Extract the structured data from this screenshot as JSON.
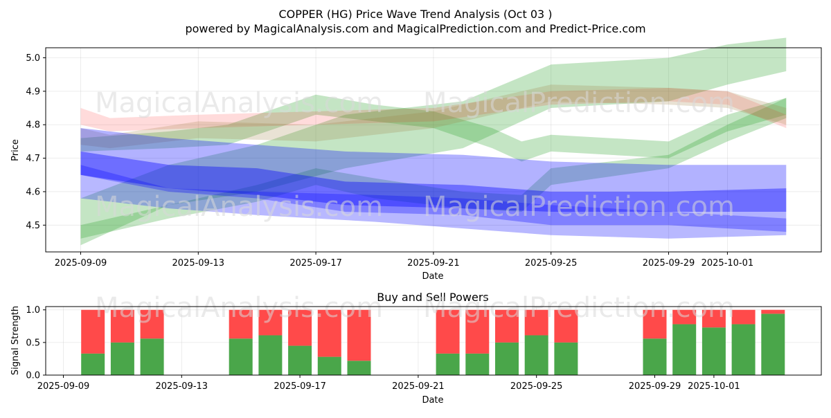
{
  "title_line1": "COPPER (HG) Price Wave Trend Analysis (Oct 03 )",
  "title_line2": "powered by MagicalAnalysis.com and MagicalPrediction.com and Predict-Price.com",
  "watermarks": [
    "MagicalAnalysis.com",
    "MagicalPrediction.com"
  ],
  "chart_data": [
    {
      "type": "area",
      "title": "COPPER (HG) Price Wave Trend Analysis (Oct 03 )",
      "xlabel": "Date",
      "ylabel": "Price",
      "xlim": [
        "2025-09-08",
        "2025-10-04"
      ],
      "ylim": [
        4.42,
        5.03
      ],
      "yticks": [
        4.5,
        4.6,
        4.7,
        4.8,
        4.9,
        5.0
      ],
      "xticks": [
        "2025-09-09",
        "2025-09-13",
        "2025-09-17",
        "2025-09-21",
        "2025-09-25",
        "2025-09-29",
        "2025-10-01"
      ],
      "grid": true,
      "series": [
        {
          "name": "green band 1",
          "color": "#2ca02c",
          "x": [
            "2025-09-09",
            "2025-09-12",
            "2025-09-15",
            "2025-09-18",
            "2025-09-22",
            "2025-09-25",
            "2025-09-29",
            "2025-10-01",
            "2025-10-03"
          ],
          "upper": [
            4.58,
            4.68,
            4.74,
            4.83,
            4.87,
            4.98,
            5.0,
            5.04,
            5.06
          ],
          "lower": [
            4.44,
            4.56,
            4.6,
            4.67,
            4.73,
            4.85,
            4.87,
            4.92,
            4.96
          ]
        },
        {
          "name": "green band 2",
          "color": "#2ca02c",
          "x": [
            "2025-09-09",
            "2025-09-12",
            "2025-09-15",
            "2025-09-17",
            "2025-09-19",
            "2025-09-22",
            "2025-09-24",
            "2025-09-25",
            "2025-09-29",
            "2025-10-01",
            "2025-10-03"
          ],
          "upper": [
            4.5,
            4.56,
            4.62,
            4.67,
            4.64,
            4.6,
            4.59,
            4.67,
            4.71,
            4.8,
            4.88
          ],
          "lower": [
            4.46,
            4.52,
            4.57,
            4.62,
            4.58,
            4.55,
            4.54,
            4.62,
            4.67,
            4.75,
            4.82
          ]
        },
        {
          "name": "green band 3",
          "color": "#2ca02c",
          "x": [
            "2025-09-09",
            "2025-09-12",
            "2025-09-14",
            "2025-09-16",
            "2025-09-17",
            "2025-09-19",
            "2025-09-21",
            "2025-09-23",
            "2025-09-24",
            "2025-09-25",
            "2025-09-29",
            "2025-10-01",
            "2025-10-03"
          ],
          "upper": [
            4.76,
            4.78,
            4.8,
            4.86,
            4.89,
            4.86,
            4.84,
            4.79,
            4.75,
            4.77,
            4.75,
            4.83,
            4.88
          ],
          "lower": [
            4.72,
            4.73,
            4.74,
            4.8,
            4.83,
            4.81,
            4.79,
            4.73,
            4.69,
            4.72,
            4.7,
            4.78,
            4.83
          ]
        },
        {
          "name": "red band",
          "color": "#ff0000",
          "x": [
            "2025-09-09",
            "2025-09-10",
            "2025-09-13",
            "2025-09-17",
            "2025-09-21",
            "2025-09-25",
            "2025-09-29",
            "2025-10-01",
            "2025-10-03"
          ],
          "upper": [
            4.85,
            4.82,
            4.83,
            4.84,
            4.85,
            4.9,
            4.91,
            4.9,
            4.83
          ],
          "lower": [
            4.8,
            4.78,
            4.79,
            4.8,
            4.81,
            4.86,
            4.87,
            4.86,
            4.79
          ]
        },
        {
          "name": "brown band",
          "color": "#9a7a3a",
          "x": [
            "2025-09-09",
            "2025-09-10",
            "2025-09-13",
            "2025-09-17",
            "2025-09-21",
            "2025-09-25",
            "2025-09-29",
            "2025-10-01",
            "2025-10-03"
          ],
          "upper": [
            4.79,
            4.77,
            4.81,
            4.8,
            4.84,
            4.92,
            4.91,
            4.9,
            4.85
          ],
          "lower": [
            4.74,
            4.73,
            4.76,
            4.75,
            4.79,
            4.87,
            4.86,
            4.85,
            4.8
          ]
        },
        {
          "name": "blue band 1",
          "color": "#0000ff",
          "x": [
            "2025-09-09",
            "2025-09-12",
            "2025-09-15",
            "2025-09-18",
            "2025-09-22",
            "2025-09-25",
            "2025-09-29",
            "2025-10-03"
          ],
          "upper": [
            4.79,
            4.76,
            4.74,
            4.72,
            4.71,
            4.69,
            4.68,
            4.68
          ],
          "lower": [
            4.65,
            4.6,
            4.58,
            4.54,
            4.53,
            4.5,
            4.5,
            4.48
          ]
        },
        {
          "name": "blue band 2",
          "color": "#0000ff",
          "x": [
            "2025-09-09",
            "2025-09-12",
            "2025-09-15",
            "2025-09-18",
            "2025-09-22",
            "2025-09-25",
            "2025-09-29",
            "2025-10-03"
          ],
          "upper": [
            4.72,
            4.68,
            4.67,
            4.63,
            4.62,
            4.6,
            4.6,
            4.61
          ],
          "lower": [
            4.65,
            4.61,
            4.59,
            4.56,
            4.55,
            4.54,
            4.54,
            4.54
          ]
        },
        {
          "name": "blue band 3",
          "color": "#0000ff",
          "x": [
            "2025-09-09",
            "2025-09-12",
            "2025-09-15",
            "2025-09-19",
            "2025-09-22",
            "2025-09-25",
            "2025-09-29",
            "2025-10-03"
          ],
          "upper": [
            4.68,
            4.61,
            4.6,
            4.59,
            4.58,
            4.56,
            4.54,
            4.52
          ],
          "lower": [
            4.58,
            4.55,
            4.53,
            4.51,
            4.49,
            4.47,
            4.46,
            4.47
          ]
        }
      ]
    },
    {
      "type": "bar",
      "title": "Buy and Sell Powers",
      "xlabel": "Date",
      "ylabel": "Signal Strength",
      "ylim": [
        0,
        1.05
      ],
      "yticks": [
        0.0,
        0.5,
        1.0
      ],
      "xticks": [
        "2025-09-09",
        "2025-09-13",
        "2025-09-17",
        "2025-09-21",
        "2025-09-25",
        "2025-09-29",
        "2025-10-01"
      ],
      "grid": true,
      "categories": [
        "2025-09-10",
        "2025-09-11",
        "2025-09-12",
        "2025-09-15",
        "2025-09-16",
        "2025-09-17",
        "2025-09-18",
        "2025-09-19",
        "2025-09-22",
        "2025-09-23",
        "2025-09-24",
        "2025-09-25",
        "2025-09-26",
        "2025-09-29",
        "2025-09-30",
        "2025-10-01",
        "2025-10-02",
        "2025-10-03"
      ],
      "series": [
        {
          "name": "Buy",
          "color": "#4aa64a",
          "values": [
            0.33,
            0.5,
            0.56,
            0.56,
            0.61,
            0.45,
            0.28,
            0.22,
            0.33,
            0.33,
            0.5,
            0.61,
            0.5,
            0.56,
            0.78,
            0.73,
            0.78,
            0.94
          ]
        },
        {
          "name": "Sell",
          "color": "#ff4a4a",
          "values": [
            0.67,
            0.5,
            0.44,
            0.44,
            0.39,
            0.55,
            0.72,
            0.78,
            0.67,
            0.67,
            0.5,
            0.39,
            0.5,
            0.44,
            0.22,
            0.27,
            0.22,
            0.06
          ]
        }
      ]
    }
  ]
}
